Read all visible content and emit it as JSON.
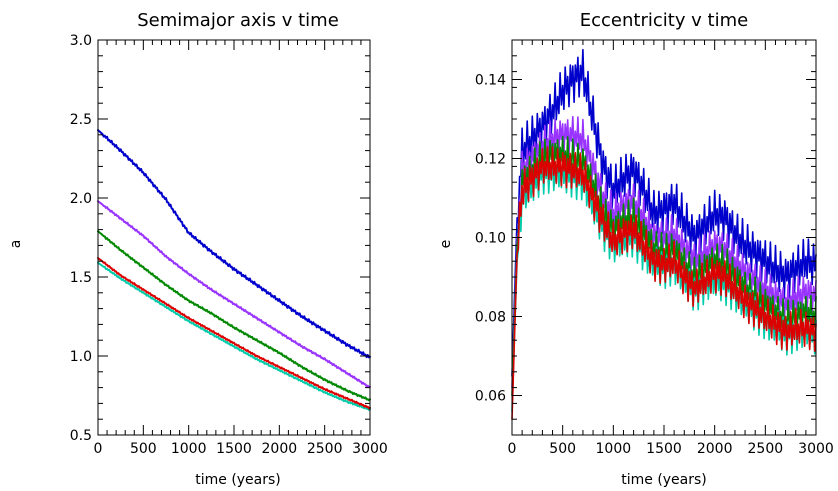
{
  "chart_data": [
    {
      "type": "line",
      "title": "Semimajor axis v time",
      "xlabel": "time (years)",
      "ylabel": "a",
      "xlim": [
        0,
        3000
      ],
      "ylim": [
        0.5,
        3.0
      ],
      "xticks": [
        0,
        500,
        1000,
        1500,
        2000,
        2500,
        3000
      ],
      "yticks": [
        0.5,
        1.0,
        1.5,
        2.0,
        2.5,
        3.0
      ],
      "ytick_labels": [
        "0.5",
        "1.0",
        "1.5",
        "2.0",
        "2.5",
        "3.0"
      ],
      "x": [
        0,
        250,
        500,
        750,
        1000,
        1250,
        1500,
        1750,
        2000,
        2250,
        2500,
        2750,
        3000
      ],
      "series": [
        {
          "color": "#0000cc",
          "noise": 0.01,
          "values": [
            2.43,
            2.3,
            2.16,
            1.99,
            1.78,
            1.66,
            1.55,
            1.45,
            1.35,
            1.25,
            1.16,
            1.07,
            0.99
          ]
        },
        {
          "color": "#9933ff",
          "noise": 0.006,
          "values": [
            1.98,
            1.87,
            1.76,
            1.63,
            1.52,
            1.42,
            1.33,
            1.24,
            1.15,
            1.06,
            0.98,
            0.89,
            0.8
          ]
        },
        {
          "color": "#008800",
          "noise": 0.006,
          "values": [
            1.79,
            1.67,
            1.56,
            1.45,
            1.35,
            1.27,
            1.18,
            1.1,
            1.02,
            0.93,
            0.85,
            0.78,
            0.72
          ]
        },
        {
          "color": "#00ccaa",
          "noise": 0.005,
          "values": [
            1.59,
            1.49,
            1.4,
            1.31,
            1.22,
            1.14,
            1.06,
            0.98,
            0.91,
            0.84,
            0.77,
            0.71,
            0.66
          ]
        },
        {
          "color": "#dd0000",
          "noise": 0.005,
          "values": [
            1.62,
            1.51,
            1.42,
            1.33,
            1.24,
            1.16,
            1.08,
            1.0,
            0.93,
            0.86,
            0.79,
            0.73,
            0.67
          ]
        }
      ]
    },
    {
      "type": "line",
      "title": "Eccentricity v time",
      "xlabel": "time (years)",
      "ylabel": "e",
      "xlim": [
        0,
        3000
      ],
      "ylim": [
        0.05,
        0.15
      ],
      "xticks": [
        0,
        500,
        1000,
        1500,
        2000,
        2500,
        3000
      ],
      "yticks": [
        0.06,
        0.08,
        0.1,
        0.12,
        0.14
      ],
      "ytick_labels": [
        "0.06",
        "0.08",
        "0.10",
        "0.12",
        "0.14"
      ],
      "x": [
        0,
        50,
        100,
        200,
        300,
        400,
        500,
        600,
        700,
        800,
        900,
        1000,
        1100,
        1200,
        1300,
        1400,
        1500,
        1600,
        1700,
        1800,
        1900,
        2000,
        2100,
        2200,
        2300,
        2400,
        2500,
        2600,
        2700,
        2800,
        2900,
        3000
      ],
      "series": [
        {
          "color": "#0000cc",
          "noise": 0.006,
          "values": [
            0.065,
            0.105,
            0.122,
            0.125,
            0.128,
            0.132,
            0.137,
            0.14,
            0.142,
            0.13,
            0.118,
            0.112,
            0.115,
            0.117,
            0.112,
            0.106,
            0.107,
            0.109,
            0.104,
            0.1,
            0.103,
            0.106,
            0.105,
            0.101,
            0.098,
            0.096,
            0.094,
            0.092,
            0.09,
            0.092,
            0.094,
            0.093
          ]
        },
        {
          "color": "#9933ff",
          "noise": 0.005,
          "values": [
            0.062,
            0.1,
            0.117,
            0.12,
            0.123,
            0.125,
            0.126,
            0.126,
            0.125,
            0.118,
            0.11,
            0.106,
            0.108,
            0.109,
            0.105,
            0.1,
            0.1,
            0.101,
            0.097,
            0.094,
            0.096,
            0.098,
            0.097,
            0.094,
            0.091,
            0.089,
            0.087,
            0.085,
            0.083,
            0.085,
            0.086,
            0.085
          ]
        },
        {
          "color": "#008800",
          "noise": 0.005,
          "values": [
            0.06,
            0.098,
            0.114,
            0.117,
            0.12,
            0.121,
            0.121,
            0.12,
            0.119,
            0.113,
            0.106,
            0.102,
            0.104,
            0.105,
            0.101,
            0.097,
            0.096,
            0.097,
            0.093,
            0.09,
            0.092,
            0.094,
            0.093,
            0.09,
            0.087,
            0.085,
            0.083,
            0.081,
            0.079,
            0.08,
            0.081,
            0.08
          ]
        },
        {
          "color": "#00ccaa",
          "noise": 0.005,
          "values": [
            0.056,
            0.094,
            0.11,
            0.113,
            0.116,
            0.116,
            0.116,
            0.115,
            0.114,
            0.108,
            0.102,
            0.098,
            0.099,
            0.1,
            0.096,
            0.093,
            0.092,
            0.093,
            0.089,
            0.086,
            0.088,
            0.089,
            0.088,
            0.086,
            0.083,
            0.081,
            0.079,
            0.077,
            0.075,
            0.076,
            0.076,
            0.075
          ]
        },
        {
          "color": "#dd0000",
          "noise": 0.005,
          "values": [
            0.054,
            0.096,
            0.112,
            0.115,
            0.118,
            0.118,
            0.118,
            0.117,
            0.116,
            0.11,
            0.104,
            0.099,
            0.101,
            0.102,
            0.098,
            0.094,
            0.093,
            0.094,
            0.09,
            0.087,
            0.089,
            0.091,
            0.09,
            0.087,
            0.084,
            0.082,
            0.08,
            0.078,
            0.076,
            0.077,
            0.077,
            0.076
          ]
        }
      ]
    }
  ]
}
